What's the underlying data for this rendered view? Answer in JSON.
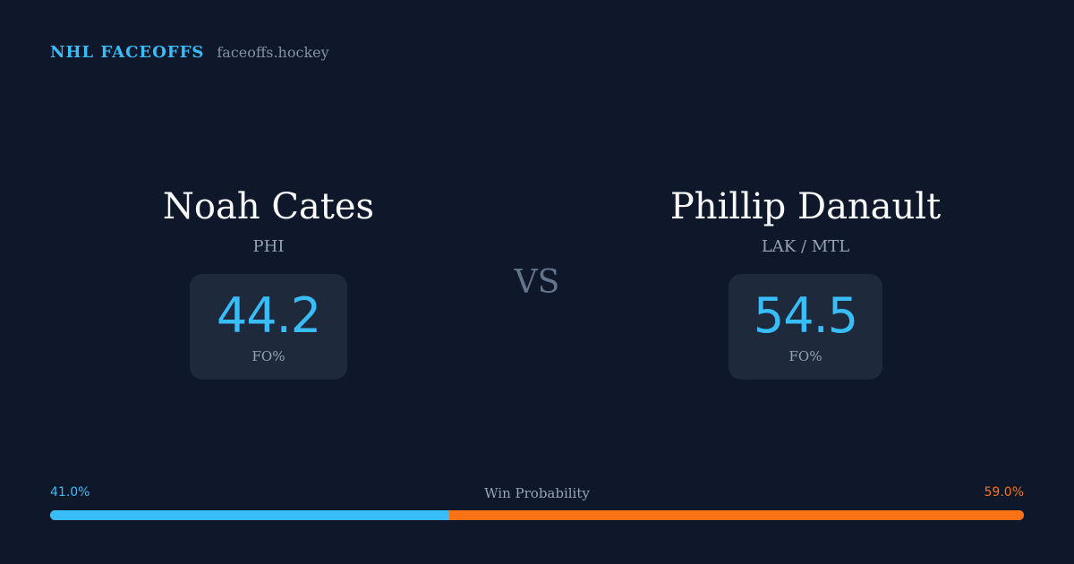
{
  "header": {
    "brand": "NHL FACEOFFS",
    "site": "faceoffs.hockey"
  },
  "player_left": {
    "name": "Noah Cates",
    "team": "PHI",
    "stat_value": "44.2",
    "stat_label": "FO%"
  },
  "player_right": {
    "name": "Phillip Danault",
    "team": "LAK / MTL",
    "stat_value": "54.5",
    "stat_label": "FO%"
  },
  "vs_label": "VS",
  "win_probability": {
    "title": "Win Probability",
    "left_label": "41.0%",
    "right_label": "59.0%",
    "left_value": 41.0,
    "right_value": 59.0
  },
  "colors": {
    "background": "#0f172a",
    "accent_blue": "#38bdf8",
    "accent_orange": "#f97316",
    "card": "#1e293b"
  }
}
